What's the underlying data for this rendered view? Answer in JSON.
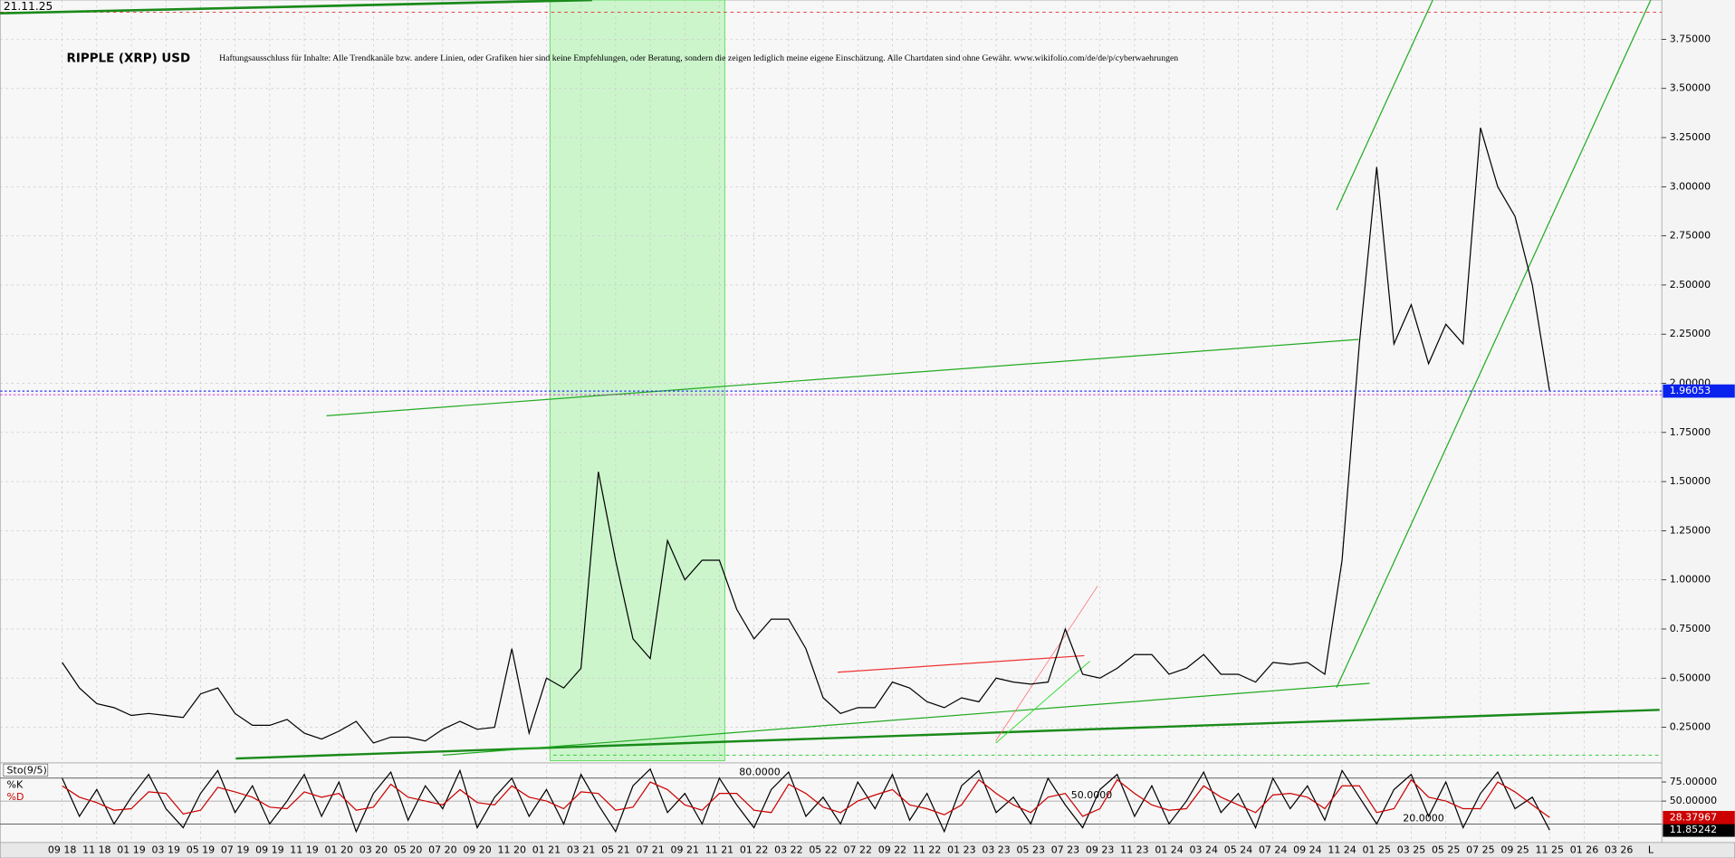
{
  "chart_data": [
    {
      "type": "line",
      "title": "RIPPLE (XRP) USD",
      "subtitle": "Haftungsausschluss für Inhalte: Alle Trendkanäle bzw. andere Linien, oder Grafiken hier sind keine Empfehlungen, oder Beratung, sondern die zeigen lediglich meine eigene Einschätzung. Alle Chartdaten sind ohne Gewähr. www.wikifolio.com/de/de/p/cyberwaehrungen",
      "date": "21.11.25",
      "scale_button": "L",
      "color": "#000000",
      "categories": [
        "09 18",
        null,
        "11 18",
        null,
        "01 19",
        null,
        "03 19",
        null,
        "05 19",
        null,
        "07 19",
        null,
        "09 19",
        null,
        "11 19",
        null,
        "01 20",
        null,
        "03 20",
        null,
        "05 20",
        null,
        "07 20",
        null,
        "09 20",
        null,
        "11 20",
        null,
        "01 21",
        null,
        "03 21",
        null,
        "05 21",
        null,
        "07 21",
        null,
        "09 21",
        null,
        "11 21",
        null,
        "01 22",
        null,
        "03 22",
        null,
        "05 22",
        null,
        "07 22",
        null,
        "09 22",
        null,
        "11 22",
        null,
        "01 23",
        null,
        "03 23",
        null,
        "05 23",
        null,
        "07 23",
        null,
        "09 23",
        null,
        "11 23",
        null,
        "01 24",
        null,
        "03 24",
        null,
        "05 24",
        null,
        "07 24",
        null,
        "09 24",
        null,
        "11 24",
        null,
        "01 25",
        null,
        "03 25",
        null,
        "05 25",
        null,
        "07 25",
        null,
        "09 25",
        null,
        "11 25",
        null,
        "01 26",
        null,
        "03 26"
      ],
      "values": [
        0.58,
        0.45,
        0.37,
        0.35,
        0.31,
        0.32,
        0.31,
        0.3,
        0.42,
        0.45,
        0.32,
        0.26,
        0.26,
        0.29,
        0.22,
        0.19,
        0.23,
        0.28,
        0.17,
        0.2,
        0.2,
        0.18,
        0.24,
        0.28,
        0.24,
        0.25,
        0.65,
        0.22,
        0.5,
        0.45,
        0.55,
        1.55,
        1.1,
        0.7,
        0.6,
        1.2,
        1.0,
        1.1,
        1.1,
        0.85,
        0.7,
        0.8,
        0.8,
        0.65,
        0.4,
        0.32,
        0.35,
        0.35,
        0.48,
        0.45,
        0.38,
        0.35,
        0.4,
        0.38,
        0.5,
        0.48,
        0.47,
        0.48,
        0.75,
        0.52,
        0.5,
        0.55,
        0.62,
        0.62,
        0.52,
        0.55,
        0.62,
        0.52,
        0.52,
        0.48,
        0.58,
        0.57,
        0.58,
        0.52,
        1.1,
        2.2,
        3.1,
        2.2,
        2.4,
        2.1,
        2.3,
        2.2,
        3.3,
        3.0,
        2.85,
        2.5,
        1.96053,
        null,
        null,
        null,
        null
      ],
      "ylim": [
        0.08,
        3.95
      ],
      "yticks": [
        {
          "value": 0.25,
          "label": "0.25000"
        },
        {
          "value": 0.5,
          "label": "0.50000"
        },
        {
          "value": 0.75,
          "label": "0.75000"
        },
        {
          "value": 1,
          "label": "1.00000"
        },
        {
          "value": 1.25,
          "label": "1.25000"
        },
        {
          "value": 1.5,
          "label": "1.50000"
        },
        {
          "value": 1.75,
          "label": "1.75000"
        },
        {
          "value": 2,
          "label": "2.00000"
        },
        {
          "value": 2.25,
          "label": "2.25000"
        },
        {
          "value": 2.5,
          "label": "2.50000"
        },
        {
          "value": 2.75,
          "label": "2.75000"
        },
        {
          "value": 3,
          "label": "3.00000"
        },
        {
          "value": 3.25,
          "label": "3.25000"
        },
        {
          "value": 3.5,
          "label": "3.50000"
        },
        {
          "value": 3.75,
          "label": "3.75000"
        }
      ],
      "grid": true
    },
    {
      "type": "line",
      "title": "Sto(9/5)",
      "series": [
        {
          "name": "%K",
          "color": "#000000",
          "values": [
            80,
            30,
            65,
            20,
            55,
            85,
            40,
            15,
            60,
            90,
            35,
            70,
            20,
            50,
            85,
            30,
            75,
            10,
            60,
            88,
            25,
            70,
            40,
            90,
            15,
            55,
            80,
            30,
            65,
            20,
            85,
            45,
            10,
            70,
            92,
            35,
            60,
            20,
            80,
            45,
            15,
            65,
            88,
            30,
            55,
            20,
            75,
            40,
            85,
            25,
            60,
            10,
            70,
            90,
            35,
            55,
            20,
            80,
            45,
            15,
            65,
            85,
            30,
            70,
            20,
            50,
            88,
            35,
            60,
            15,
            80,
            40,
            70,
            25,
            90,
            55,
            20,
            65,
            85,
            30,
            75,
            15,
            60,
            88,
            40,
            55,
            11.85242,
            null,
            null,
            null,
            null
          ]
        },
        {
          "name": "%D",
          "color": "#cc0000",
          "values": [
            70,
            55,
            48,
            38,
            40,
            62,
            60,
            33,
            38,
            68,
            62,
            55,
            42,
            40,
            62,
            55,
            60,
            38,
            42,
            72,
            55,
            50,
            45,
            65,
            48,
            45,
            70,
            55,
            50,
            40,
            62,
            60,
            38,
            42,
            75,
            65,
            45,
            38,
            60,
            60,
            38,
            35,
            72,
            60,
            42,
            35,
            50,
            58,
            65,
            45,
            40,
            32,
            45,
            78,
            60,
            45,
            35,
            55,
            60,
            30,
            40,
            78,
            60,
            45,
            38,
            40,
            70,
            55,
            45,
            35,
            58,
            60,
            55,
            40,
            70,
            70,
            35,
            40,
            78,
            55,
            50,
            40,
            40,
            75,
            62,
            45,
            28.37967,
            null,
            null,
            null,
            null
          ]
        }
      ],
      "ylim": [
        0,
        100
      ],
      "yticks": [
        {
          "value": 75,
          "label": "75.00000"
        },
        {
          "value": 50,
          "label": "50.00000"
        }
      ],
      "levels": [
        {
          "value": 80,
          "label": "80.0000"
        },
        {
          "value": 50,
          "label": "50.0000"
        },
        {
          "value": 20,
          "label": "20.0000"
        }
      ]
    }
  ]
}
